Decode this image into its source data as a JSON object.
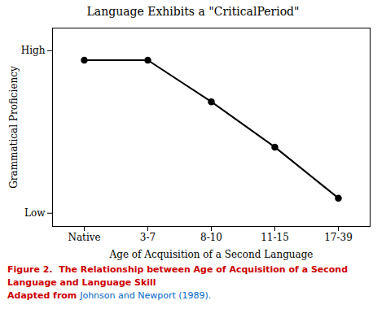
{
  "chart_data": {
    "type": "line",
    "title": "Language Exhibits a \"CriticalPeriod\"",
    "x_label": "Age of Acquisition of a Second Language",
    "y_label": "Grammatical Proficiency",
    "categories": [
      "Native",
      "3-7",
      "8-10",
      "11-15",
      "17-39"
    ],
    "values": [
      0.88,
      0.88,
      0.66,
      0.42,
      0.15
    ],
    "ylim": [
      0,
      1.05
    ],
    "yticks": [
      {
        "value": 0.07,
        "label": "Low"
      },
      {
        "value": 0.93,
        "label": "High"
      }
    ],
    "color": "#000000",
    "marker": "circle",
    "grid": false,
    "caption": [
      [
        {
          "text": "Figure 2.  The Relationship between Age of Acquisition of a Second",
          "color": "#cc0000",
          "bold": true
        }
      ],
      [
        {
          "text": "Language and Language Skill",
          "color": "#cc0000",
          "bold": true
        }
      ],
      [
        {
          "text": "Adapted from ",
          "color": "#cc0000",
          "bold": true
        },
        {
          "text": "Johnson and Newport (1989).",
          "color": "#0066cc",
          "bold": false
        }
      ]
    ]
  }
}
